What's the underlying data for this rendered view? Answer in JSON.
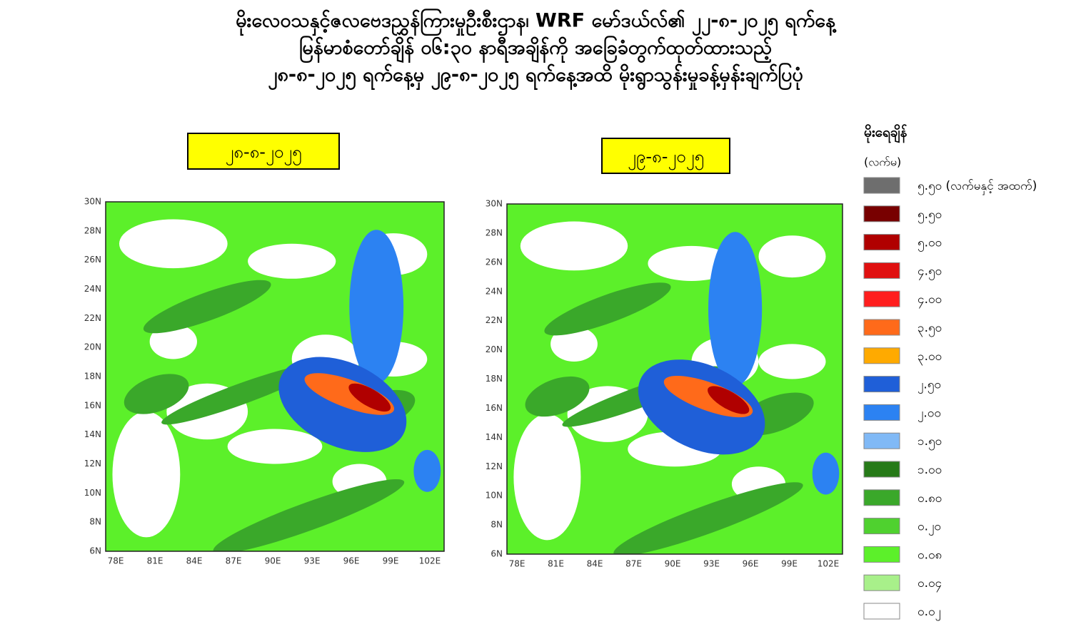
{
  "header": {
    "lines": [
      "မိုးလေဝသနှင့်ဇလဗေဒညွှန်ကြားမှုဦးစီးဌာန၊ WRF မော်ဒယ်လ်၏ ၂၂-၈-၂၀၂၅ ရက်နေ့",
      "မြန်မာစံတော်ချိန် ၀၆:၃၀ နာရီအချိန်ကို အခြေခံတွက်ထုတ်ထားသည့်",
      "၂၈-၈-၂၀၂၅ ရက်နေ့မှ ၂၉-၈-၂၀၂၅ ရက်နေ့အထိ မိုးရွာသွန်းမှုခန့်မှန်းချက်ပြပုံ"
    ]
  },
  "panels": [
    {
      "date": "၂၈-၈-၂၀၂၅"
    },
    {
      "date": "၂၉-၈-၂၀၂၅"
    }
  ],
  "axes": {
    "x_labels": [
      "78E",
      "81E",
      "84E",
      "87E",
      "90E",
      "93E",
      "96E",
      "99E",
      "102E"
    ],
    "y_labels": [
      "30N",
      "28N",
      "26N",
      "24N",
      "22N",
      "20N",
      "18N",
      "16N",
      "14N",
      "12N",
      "10N",
      "8N",
      "6N"
    ]
  },
  "legend": {
    "title": "မိုးရေချိန်",
    "unit": "(လက်မ)",
    "items": [
      {
        "label": "၅.၅၀ (လက်မနှင့် အထက်)",
        "color": "#6e6e6e"
      },
      {
        "label": "၅.၅၀",
        "color": "#780000"
      },
      {
        "label": "၅.၀၀",
        "color": "#b00000"
      },
      {
        "label": "၄.၅၀",
        "color": "#e01010"
      },
      {
        "label": "၄.၀၀",
        "color": "#ff1e1e"
      },
      {
        "label": "၃.၅၀",
        "color": "#ff6a1a"
      },
      {
        "label": "၃.၀၀",
        "color": "#ffaa00"
      },
      {
        "label": "၂.၅၀",
        "color": "#1f5fd8"
      },
      {
        "label": "၂.၀၀",
        "color": "#2c82f2"
      },
      {
        "label": "၁.၅၀",
        "color": "#80b9f6"
      },
      {
        "label": "၁.၀၀",
        "color": "#267a18"
      },
      {
        "label": "၀.၈၀",
        "color": "#3aa82a"
      },
      {
        "label": "၀.၂၀",
        "color": "#4fd12f"
      },
      {
        "label": "၀.၀၈",
        "color": "#5cf02a"
      },
      {
        "label": "၀.၀၄",
        "color": "#a8f08a"
      },
      {
        "label": "၀.၀၂",
        "color": "#ffffff"
      }
    ]
  }
}
